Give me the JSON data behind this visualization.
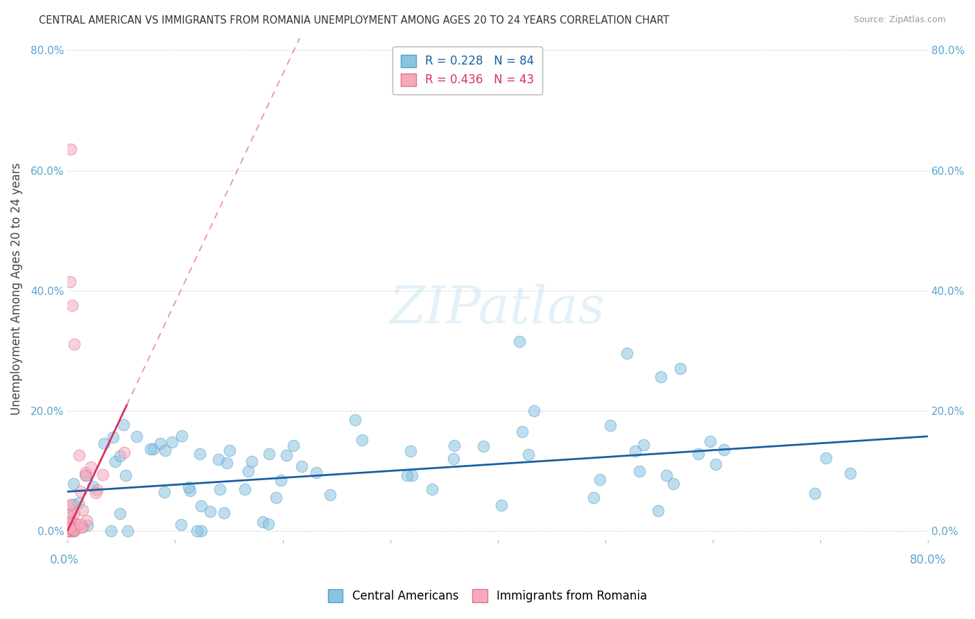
{
  "title": "CENTRAL AMERICAN VS IMMIGRANTS FROM ROMANIA UNEMPLOYMENT AMONG AGES 20 TO 24 YEARS CORRELATION CHART",
  "source": "Source: ZipAtlas.com",
  "ylabel": "Unemployment Among Ages 20 to 24 years",
  "ytick_labels": [
    "0.0%",
    "20.0%",
    "40.0%",
    "60.0%",
    "80.0%"
  ],
  "ytick_values": [
    0.0,
    0.2,
    0.4,
    0.6,
    0.8
  ],
  "xlim": [
    0.0,
    0.8
  ],
  "ylim": [
    0.0,
    0.8
  ],
  "legend_entries_labels": [
    "R = 0.228   N = 84",
    "R = 0.436   N = 43"
  ],
  "legend_bottom": [
    "Central Americans",
    "Immigrants from Romania"
  ],
  "blue_face_color": "#89c4e1",
  "blue_edge_color": "#5a9ec8",
  "pink_face_color": "#f4aabb",
  "pink_edge_color": "#e07090",
  "blue_line_color": "#1a5fa0",
  "pink_line_color": "#d93060",
  "pink_dash_color": "#e080a0",
  "background_color": "#ffffff",
  "grid_color": "#cccccc",
  "axis_tick_color": "#5ba3d0",
  "watermark": "ZIPatlas",
  "blue_N": 84,
  "pink_N": 43,
  "blue_trend_intercept": 0.065,
  "blue_trend_slope": 0.115,
  "pink_trend_intercept": 0.0,
  "pink_trend_slope": 3.8,
  "seed": 7
}
